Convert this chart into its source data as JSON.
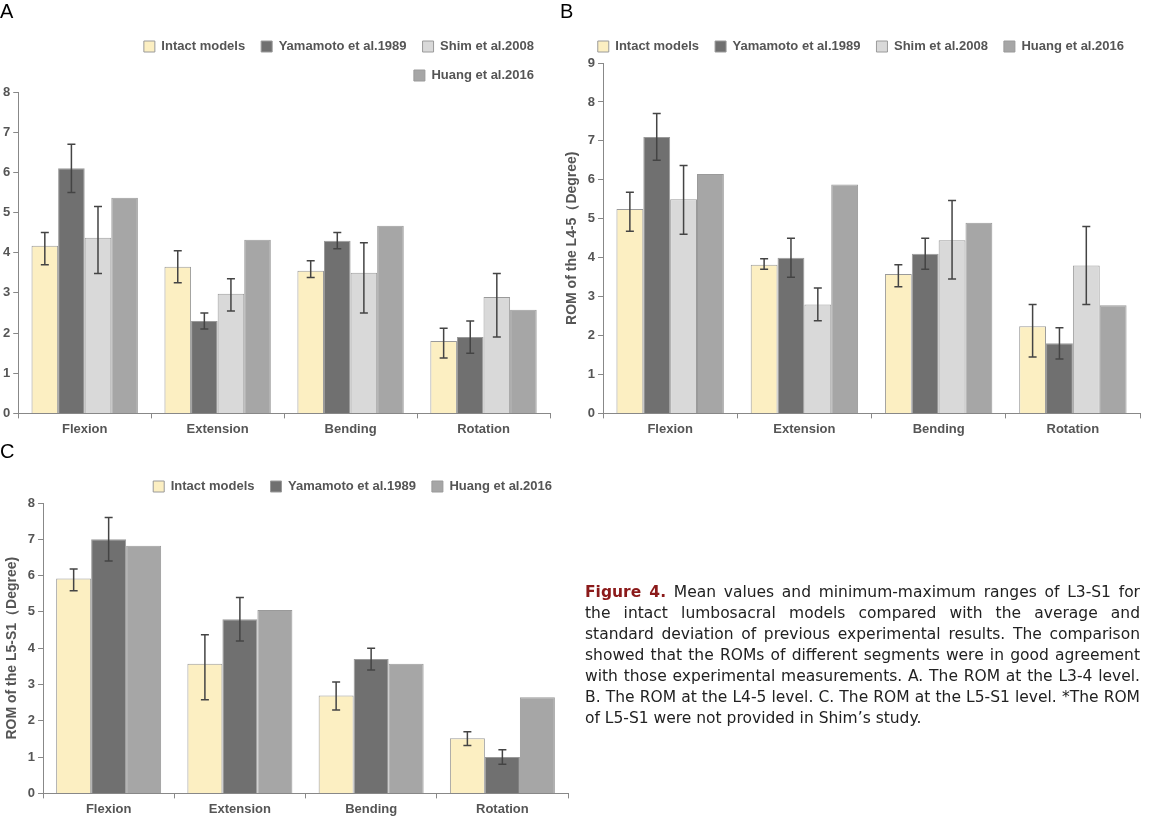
{
  "chart_data": [
    {
      "type": "bar",
      "title": "A",
      "categories": [
        "Flexion",
        "Extension",
        "Bending",
        "Rotation"
      ],
      "series": [
        {
          "name": "Intact models",
          "color": "#fcefc2",
          "values": [
            4.17,
            3.65,
            3.55,
            1.8
          ],
          "errors": [
            [
              3.7,
              4.5
            ],
            [
              3.25,
              4.05
            ],
            [
              3.38,
              3.8
            ],
            [
              1.38,
              2.12
            ]
          ]
        },
        {
          "name": "Yamamoto et al.1989",
          "color": "#707070",
          "values": [
            6.1,
            2.3,
            4.3,
            1.9
          ],
          "errors": [
            [
              5.5,
              6.7
            ],
            [
              2.1,
              2.5
            ],
            [
              4.1,
              4.5
            ],
            [
              1.5,
              2.3
            ]
          ]
        },
        {
          "name": "Shim et al.2008",
          "color": "#d9d9d9",
          "values": [
            4.37,
            2.98,
            3.5,
            2.9
          ],
          "errors": [
            [
              3.48,
              5.15
            ],
            [
              2.55,
              3.35
            ],
            [
              2.5,
              4.25
            ],
            [
              1.9,
              3.48
            ]
          ]
        },
        {
          "name": "Huang et al.2016",
          "color": "#a6a6a6",
          "values": [
            5.37,
            4.32,
            4.67,
            2.58
          ]
        }
      ],
      "ylim": [
        0,
        8
      ],
      "yticks": [
        0,
        1,
        2,
        3,
        4,
        5,
        6,
        7,
        8
      ],
      "grid": false,
      "legend": "top"
    },
    {
      "type": "bar",
      "title": "B",
      "ylabel": "ROM of the L4-5（Degree)",
      "categories": [
        "Flexion",
        "Extension",
        "Bending",
        "Rotation"
      ],
      "series": [
        {
          "name": "Intact models",
          "color": "#fcefc2",
          "values": [
            5.25,
            3.82,
            3.58,
            2.24
          ],
          "errors": [
            [
              4.68,
              5.68
            ],
            [
              3.7,
              3.97
            ],
            [
              3.25,
              3.82
            ],
            [
              1.45,
              2.8
            ]
          ]
        },
        {
          "name": "Yamamoto et al.1989",
          "color": "#707070",
          "values": [
            7.1,
            4.0,
            4.1,
            1.8
          ],
          "errors": [
            [
              6.5,
              7.7
            ],
            [
              3.5,
              4.5
            ],
            [
              3.7,
              4.5
            ],
            [
              1.4,
              2.2
            ]
          ]
        },
        {
          "name": "Shim et al.2008",
          "color": "#d9d9d9",
          "values": [
            5.5,
            2.8,
            4.45,
            3.8
          ],
          "errors": [
            [
              4.6,
              6.37
            ],
            [
              2.38,
              3.22
            ],
            [
              3.45,
              5.47
            ],
            [
              2.8,
              4.8
            ]
          ]
        },
        {
          "name": "Huang et al.2016",
          "color": "#a6a6a6",
          "values": [
            6.15,
            5.88,
            4.9,
            2.78
          ]
        }
      ],
      "ylim": [
        0,
        9
      ],
      "yticks": [
        0,
        1,
        2,
        3,
        4,
        5,
        6,
        7,
        8,
        9
      ],
      "grid": false,
      "legend": "top"
    },
    {
      "type": "bar",
      "title": "C",
      "ylabel": "ROM of the L5-S1（Degree)",
      "categories": [
        "Flexion",
        "Extension",
        "Bending",
        "Rotation"
      ],
      "series": [
        {
          "name": "Intact models",
          "color": "#fcefc2",
          "values": [
            5.92,
            3.57,
            2.7,
            1.52
          ],
          "errors": [
            [
              5.58,
              6.18
            ],
            [
              2.58,
              4.37
            ],
            [
              2.3,
              3.07
            ],
            [
              1.32,
              1.7
            ]
          ]
        },
        {
          "name": "Yamamoto et al.1989",
          "color": "#707070",
          "values": [
            7.0,
            4.8,
            3.7,
            1.0
          ],
          "errors": [
            [
              6.4,
              7.6
            ],
            [
              4.2,
              5.4
            ],
            [
              3.4,
              4.0
            ],
            [
              0.8,
              1.2
            ]
          ]
        },
        {
          "name": "Huang et al.2016",
          "color": "#a6a6a6",
          "values": [
            6.82,
            5.05,
            3.57,
            2.65
          ]
        }
      ],
      "ylim": [
        0,
        8
      ],
      "yticks": [
        0,
        1,
        2,
        3,
        4,
        5,
        6,
        7,
        8
      ],
      "grid": false,
      "legend": "top"
    },
    {
      "type": "other",
      "title": "Figure 4.",
      "annotations": [
        "Mean values and minimum-maximum ranges of L3-S1 for the intact lumbosacral models compared with the average and standard deviation of previous experimental results. The comparison showed that the ROMs of different segments were in good agreement with those experimental measurements. A. The ROM at the L3-4 level. B. The ROM at the L4-5 level. C. The ROM at the L5-S1 level. *The ROM of L5-S1 were not provided in Shim’s study."
      ]
    }
  ]
}
